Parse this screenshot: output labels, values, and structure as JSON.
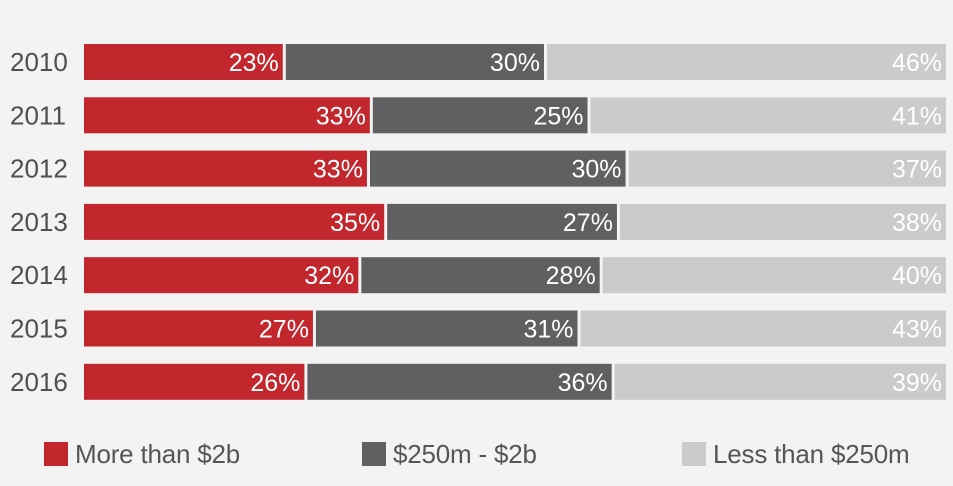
{
  "chart_data": {
    "type": "bar",
    "orientation": "horizontal",
    "stacked": true,
    "categories": [
      "2010",
      "2011",
      "2012",
      "2013",
      "2014",
      "2015",
      "2016"
    ],
    "series": [
      {
        "name": "More than $2b",
        "color": "#c1272d",
        "values": [
          23,
          33,
          33,
          35,
          32,
          27,
          26
        ],
        "labels": [
          "23%",
          "33%",
          "33%",
          "35%",
          "32%",
          "27%",
          "26%"
        ]
      },
      {
        "name": "$250m - $2b",
        "color": "#606062",
        "values": [
          30,
          25,
          30,
          27,
          28,
          31,
          36
        ],
        "labels": [
          "30%",
          "25%",
          "30%",
          "27%",
          "28%",
          "31%",
          "36%"
        ]
      },
      {
        "name": "Less than $250m",
        "color": "#cbcbcd",
        "values": [
          46,
          41,
          37,
          38,
          40,
          43,
          39
        ],
        "labels": [
          "46%",
          "41%",
          "37%",
          "38%",
          "40%",
          "43%",
          "39%"
        ]
      }
    ],
    "value_unit": "%",
    "grid": false,
    "legend_position": "bottom"
  }
}
